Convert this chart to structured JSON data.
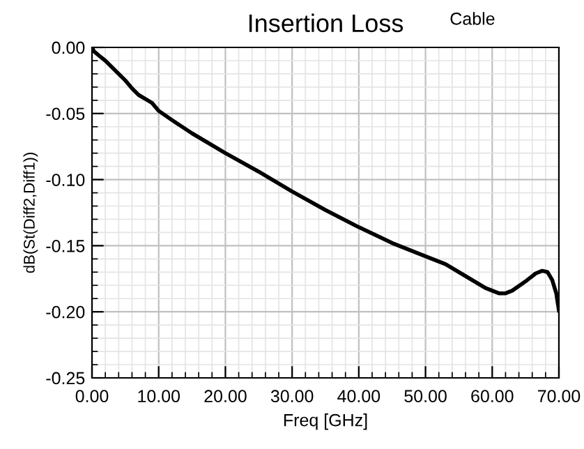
{
  "chart_data": {
    "type": "line",
    "title": "Insertion Loss",
    "xlabel": "Freq [GHz]",
    "ylabel": "dB(St(Diff2,Diff1))",
    "annotations": [
      "Cable"
    ],
    "x": [
      0,
      0.3,
      1,
      2,
      3,
      5,
      6,
      7,
      8,
      9,
      10,
      12,
      15,
      20,
      25,
      30,
      35,
      40,
      45,
      50,
      53,
      56,
      59,
      61,
      62,
      63,
      65,
      66.5,
      67.5,
      68.3,
      69,
      69.6,
      70
    ],
    "series": [
      {
        "color": "#000000",
        "values": [
          0,
          -0.003,
          -0.006,
          -0.01,
          -0.015,
          -0.025,
          -0.031,
          -0.036,
          -0.039,
          -0.042,
          -0.048,
          -0.055,
          -0.065,
          -0.08,
          -0.094,
          -0.109,
          -0.123,
          -0.136,
          -0.148,
          -0.158,
          -0.164,
          -0.173,
          -0.182,
          -0.186,
          -0.186,
          -0.184,
          -0.177,
          -0.171,
          -0.169,
          -0.17,
          -0.176,
          -0.186,
          -0.199
        ]
      }
    ],
    "xlim": [
      0,
      70
    ],
    "ylim": [
      -0.25,
      0
    ],
    "xticks": [
      {
        "value": 0,
        "label": "0.00"
      },
      {
        "value": 10,
        "label": "10.00"
      },
      {
        "value": 20,
        "label": "20.00"
      },
      {
        "value": 30,
        "label": "30.00"
      },
      {
        "value": 40,
        "label": "40.00"
      },
      {
        "value": 50,
        "label": "50.00"
      },
      {
        "value": 60,
        "label": "60.00"
      },
      {
        "value": 70,
        "label": "70.00"
      }
    ],
    "yticks": [
      {
        "value": -0.25,
        "label": "-0.25"
      },
      {
        "value": -0.2,
        "label": "-0.20"
      },
      {
        "value": -0.15,
        "label": "-0.15"
      },
      {
        "value": -0.1,
        "label": "-0.10"
      },
      {
        "value": -0.05,
        "label": "-0.05"
      },
      {
        "value": 0,
        "label": "0.00"
      }
    ],
    "grid": true,
    "marker": "none",
    "line_style": "solid"
  }
}
